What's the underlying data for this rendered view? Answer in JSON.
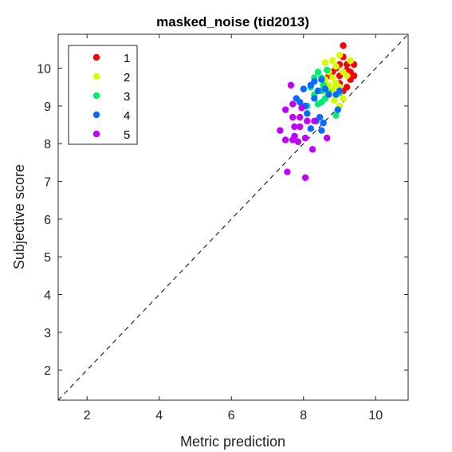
{
  "chart_data": {
    "type": "scatter",
    "title": "masked_noise (tid2013)",
    "xlabel": "Metric prediction",
    "ylabel": "Subjective score",
    "xlim": [
      1.2,
      10.9
    ],
    "ylim": [
      1.2,
      10.9
    ],
    "xticks": [
      "2",
      "4",
      "6",
      "8",
      "10"
    ],
    "yticks": [
      "2",
      "3",
      "4",
      "5",
      "6",
      "7",
      "8",
      "9",
      "10"
    ],
    "grid": false,
    "legend_position": "top-left",
    "reference_line": "dashed diagonal y = x",
    "series": [
      {
        "name": "1",
        "color": "#ff0000",
        "points": [
          [
            9.1,
            10.6
          ],
          [
            9.1,
            10.3
          ],
          [
            9.2,
            10.1
          ],
          [
            9.4,
            10.1
          ],
          [
            9.0,
            10.1
          ],
          [
            9.2,
            9.95
          ],
          [
            9.1,
            9.9
          ],
          [
            8.8,
            9.9
          ],
          [
            9.4,
            9.8
          ],
          [
            9.3,
            9.7
          ],
          [
            9.0,
            9.6
          ],
          [
            8.7,
            9.8
          ],
          [
            9.2,
            9.5
          ],
          [
            9.1,
            9.4
          ],
          [
            8.9,
            9.6
          ],
          [
            9.3,
            9.9
          ],
          [
            9.0,
            9.8
          ],
          [
            8.9,
            10.0
          ]
        ]
      },
      {
        "name": "2",
        "color": "#d4ff00",
        "points": [
          [
            9.0,
            10.35
          ],
          [
            9.3,
            10.2
          ],
          [
            8.8,
            10.2
          ],
          [
            8.6,
            10.15
          ],
          [
            8.9,
            10.05
          ],
          [
            9.1,
            9.9
          ],
          [
            8.7,
            9.9
          ],
          [
            9.2,
            9.8
          ],
          [
            8.8,
            9.75
          ],
          [
            8.6,
            9.7
          ],
          [
            8.9,
            9.6
          ],
          [
            8.7,
            9.55
          ],
          [
            9.0,
            9.5
          ],
          [
            8.8,
            9.45
          ],
          [
            8.6,
            9.4
          ],
          [
            8.9,
            9.3
          ],
          [
            8.7,
            9.3
          ],
          [
            9.1,
            9.2
          ],
          [
            9.0,
            9.0
          ],
          [
            8.85,
            9.15
          ]
        ]
      },
      {
        "name": "3",
        "color": "#00ee6a",
        "points": [
          [
            8.65,
            9.95
          ],
          [
            8.4,
            9.9
          ],
          [
            8.5,
            9.75
          ],
          [
            8.3,
            9.75
          ],
          [
            8.2,
            9.5
          ],
          [
            8.5,
            9.4
          ],
          [
            8.7,
            9.35
          ],
          [
            8.3,
            9.3
          ],
          [
            8.5,
            9.1
          ],
          [
            8.6,
            9.2
          ],
          [
            8.1,
            9.0
          ],
          [
            8.9,
            8.75
          ],
          [
            9.0,
            9.35
          ],
          [
            8.4,
            9.05
          ],
          [
            8.55,
            9.55
          ]
        ]
      },
      {
        "name": "4",
        "color": "#0a6aff",
        "points": [
          [
            8.3,
            9.65
          ],
          [
            8.5,
            9.7
          ],
          [
            8.2,
            9.55
          ],
          [
            8.0,
            9.45
          ],
          [
            8.4,
            9.4
          ],
          [
            8.6,
            9.45
          ],
          [
            8.7,
            9.3
          ],
          [
            7.8,
            9.2
          ],
          [
            8.3,
            9.2
          ],
          [
            8.05,
            9.0
          ],
          [
            8.1,
            8.8
          ],
          [
            8.35,
            8.6
          ],
          [
            8.55,
            8.55
          ],
          [
            8.5,
            8.35
          ],
          [
            8.2,
            8.4
          ],
          [
            8.9,
            9.3
          ],
          [
            8.95,
            8.9
          ],
          [
            8.45,
            8.7
          ],
          [
            7.9,
            9.1
          ],
          [
            9.0,
            9.4
          ]
        ]
      },
      {
        "name": "5",
        "color": "#c000ff",
        "points": [
          [
            7.65,
            9.55
          ],
          [
            7.7,
            9.05
          ],
          [
            7.95,
            8.95
          ],
          [
            7.7,
            8.7
          ],
          [
            7.9,
            8.7
          ],
          [
            7.75,
            8.45
          ],
          [
            8.1,
            8.6
          ],
          [
            7.9,
            8.45
          ],
          [
            8.3,
            8.6
          ],
          [
            7.5,
            8.9
          ],
          [
            7.35,
            8.35
          ],
          [
            7.5,
            8.1
          ],
          [
            7.75,
            8.2
          ],
          [
            7.85,
            8.05
          ],
          [
            8.05,
            8.15
          ],
          [
            8.25,
            7.85
          ],
          [
            8.65,
            8.15
          ],
          [
            7.55,
            7.25
          ],
          [
            8.05,
            7.1
          ],
          [
            7.7,
            8.1
          ]
        ]
      }
    ]
  }
}
